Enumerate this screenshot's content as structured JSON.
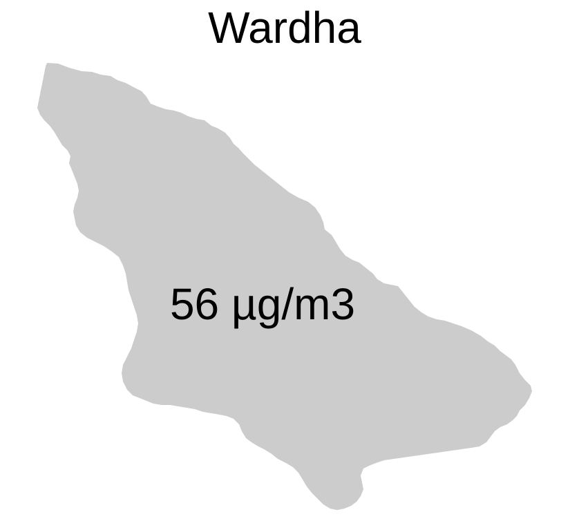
{
  "map": {
    "title": "Wardha",
    "region_label": "56 µg/m3",
    "region_fill": "#cccccc",
    "background": "#ffffff"
  }
}
